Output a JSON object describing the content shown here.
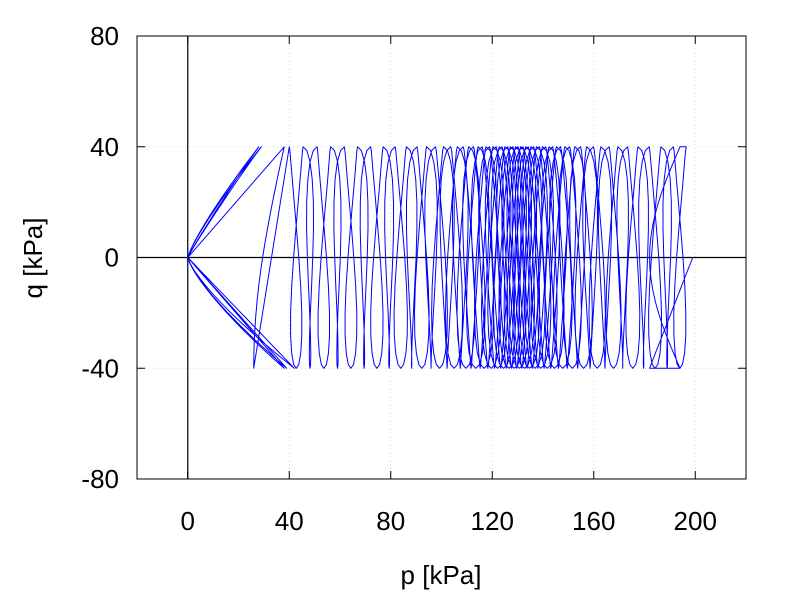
{
  "chart_data": {
    "type": "line",
    "title": "",
    "xlabel": "p [kPa]",
    "ylabel": "q [kPa]",
    "xlim": [
      -20,
      220
    ],
    "ylim": [
      -80,
      80
    ],
    "x_ticks": [
      0,
      40,
      80,
      120,
      160,
      200
    ],
    "x_tick_labels": [
      "0",
      "40",
      "80",
      "120",
      "160",
      "200"
    ],
    "y_ticks": [
      -80,
      -40,
      0,
      40,
      80
    ],
    "y_tick_labels": [
      "-80",
      "-40",
      "0",
      "40",
      "80"
    ],
    "grid": true,
    "zero_lines": true,
    "series": [
      {
        "color": "#0000ff",
        "description_points": {
          "start": [
            0,
            0
          ],
          "first_peak": [
            28,
            40
          ],
          "first_trough": [
            38,
            -40
          ],
          "late_peak": [
            195,
            42
          ],
          "end": [
            199,
            0
          ]
        },
        "amplitude": 40,
        "p_range": [
          0,
          199
        ]
      }
    ]
  }
}
